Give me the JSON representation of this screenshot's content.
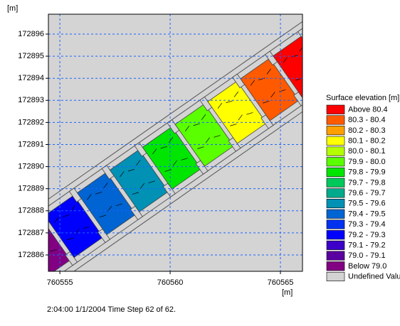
{
  "chart_data": {
    "type": "contour",
    "x_unit": "[m]",
    "y_unit": "[m]",
    "xlim": [
      760554.48,
      760566.0
    ],
    "ylim": [
      172885.26,
      172896.9
    ],
    "xticks": [
      760555,
      760560,
      760565
    ],
    "yticks": [
      172886,
      172887,
      172888,
      172889,
      172890,
      172891,
      172892,
      172893,
      172894,
      172895,
      172896
    ],
    "grid": true,
    "legend_title": "Surface elevation [m]",
    "legend": [
      {
        "name": "Above 80.4",
        "color": "#ff0000"
      },
      {
        "name": "80.3 - 80.4",
        "color": "#ff5a00"
      },
      {
        "name": "80.2 - 80.3",
        "color": "#ffa000"
      },
      {
        "name": "80.1 - 80.2",
        "color": "#ffff00"
      },
      {
        "name": "80.0 - 80.1",
        "color": "#b4ff00"
      },
      {
        "name": "79.9 - 80.0",
        "color": "#5aff00"
      },
      {
        "name": "79.8 - 79.9",
        "color": "#00e600"
      },
      {
        "name": "79.7 - 79.8",
        "color": "#00c85a"
      },
      {
        "name": "79.6 - 79.7",
        "color": "#00aa8c"
      },
      {
        "name": "79.5 - 79.6",
        "color": "#0091b4"
      },
      {
        "name": "79.4 - 79.5",
        "color": "#0064d2"
      },
      {
        "name": "79.3 - 79.4",
        "color": "#0032f0"
      },
      {
        "name": "79.2 - 79.3",
        "color": "#0000ff"
      },
      {
        "name": "79.1 - 79.2",
        "color": "#3c00c8"
      },
      {
        "name": "79.0 - 79.1",
        "color": "#5a00a0"
      },
      {
        "name": "Below 79.0",
        "color": "#820082"
      },
      {
        "name": "Undefined Valu",
        "color": "#d3d3d3"
      }
    ],
    "footer": "2:04:00 1/1/2004  Time Step 62 of 62."
  }
}
